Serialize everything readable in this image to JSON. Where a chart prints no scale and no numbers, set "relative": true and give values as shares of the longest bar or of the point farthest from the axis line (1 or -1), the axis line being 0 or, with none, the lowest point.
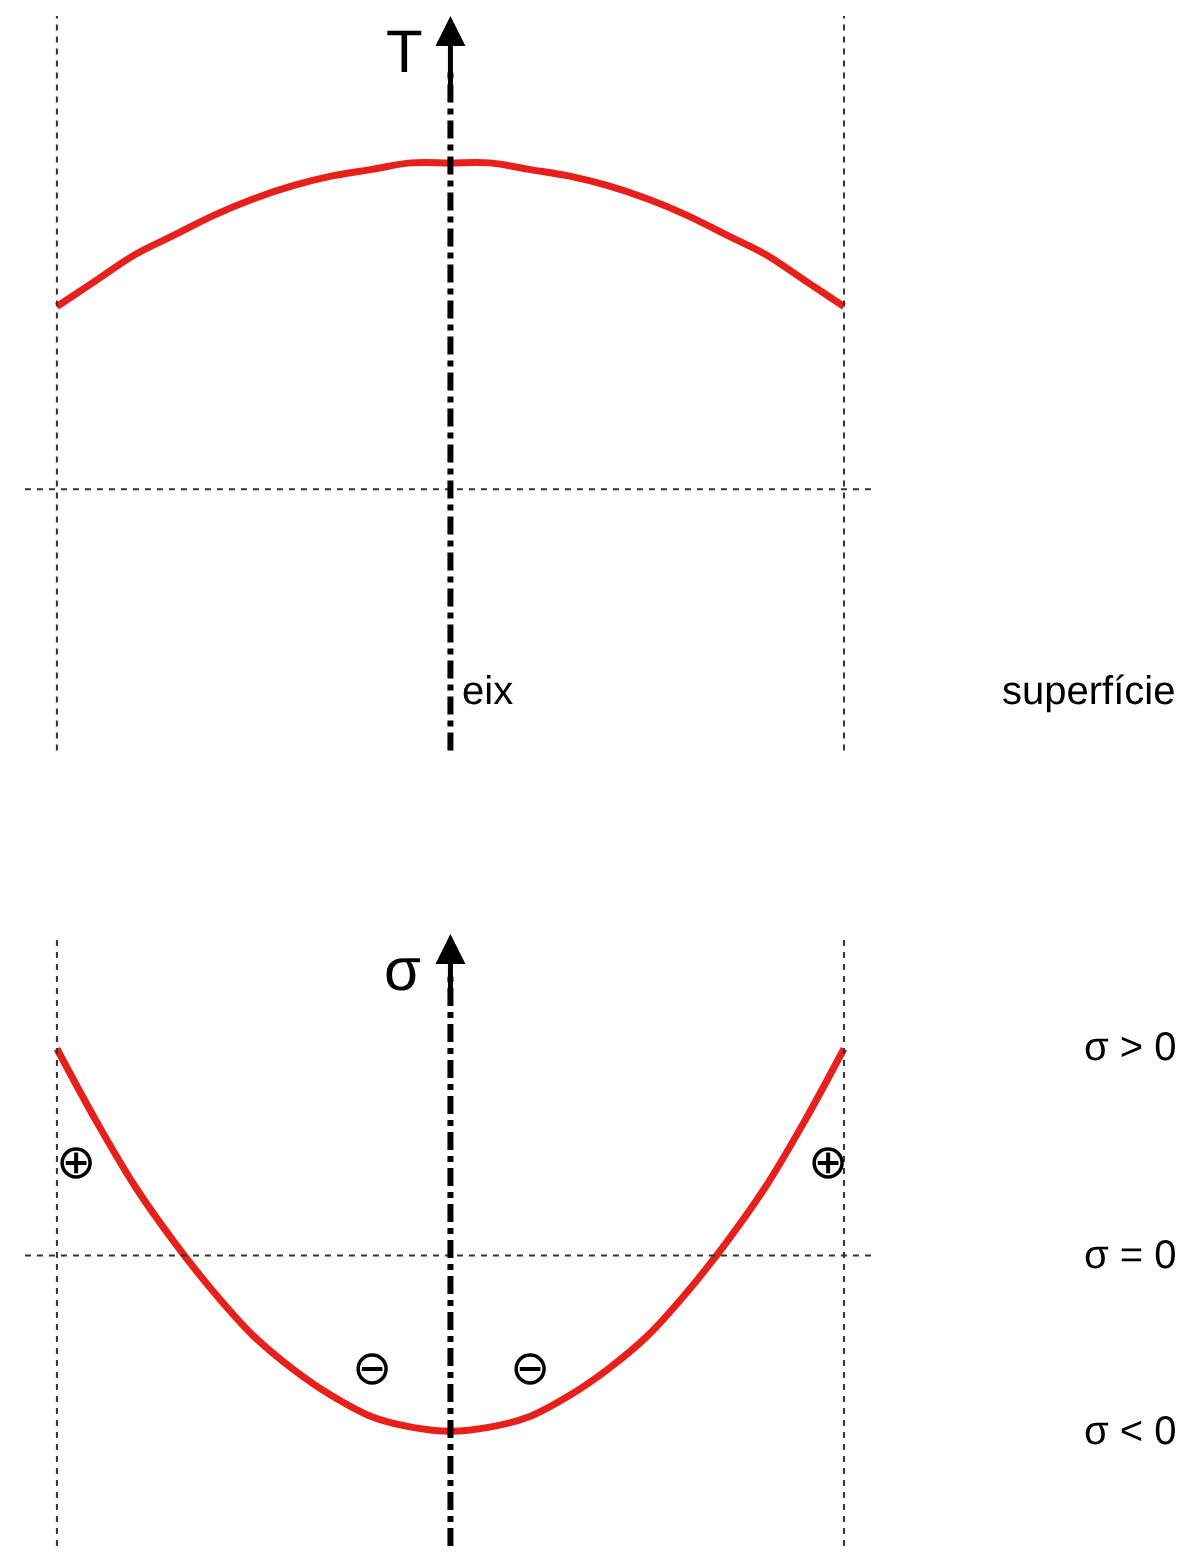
{
  "chart_data": [
    {
      "type": "line",
      "relative": true,
      "ylabel": "T",
      "color": "#e8201c",
      "categories": [
        null,
        null,
        null,
        null,
        null,
        null,
        null,
        null,
        null,
        null,
        null,
        null,
        null,
        null,
        null,
        null,
        null,
        null,
        null,
        null,
        null
      ],
      "values": [
        0.56,
        0.64,
        0.72,
        0.78,
        0.84,
        0.89,
        0.93,
        0.96,
        0.98,
        1.0,
        1.0,
        1.0,
        0.98,
        0.96,
        0.93,
        0.89,
        0.84,
        0.78,
        0.72,
        0.64,
        0.56
      ],
      "marker": "none",
      "line_style": "solid",
      "annotations": [
        "eix",
        "superfície"
      ]
    },
    {
      "type": "line",
      "relative": true,
      "ylabel": "σ",
      "color": "#e8201c",
      "categories": [
        null,
        null,
        null,
        null,
        null,
        null,
        null,
        null,
        null,
        null,
        null,
        null,
        null,
        null,
        null,
        null,
        null,
        null,
        null,
        null,
        null
      ],
      "values": [
        1.0,
        0.65,
        0.33,
        0.06,
        -0.18,
        -0.39,
        -0.55,
        -0.68,
        -0.78,
        -0.83,
        -0.85,
        -0.83,
        -0.78,
        -0.68,
        -0.55,
        -0.39,
        -0.18,
        0.06,
        0.33,
        0.65,
        1.0
      ],
      "marker": "none",
      "line_style": "solid",
      "annotations": [
        "⊕",
        "⊖",
        "⊖",
        "⊕",
        "σ > 0",
        "σ = 0",
        "σ < 0"
      ]
    }
  ]
}
